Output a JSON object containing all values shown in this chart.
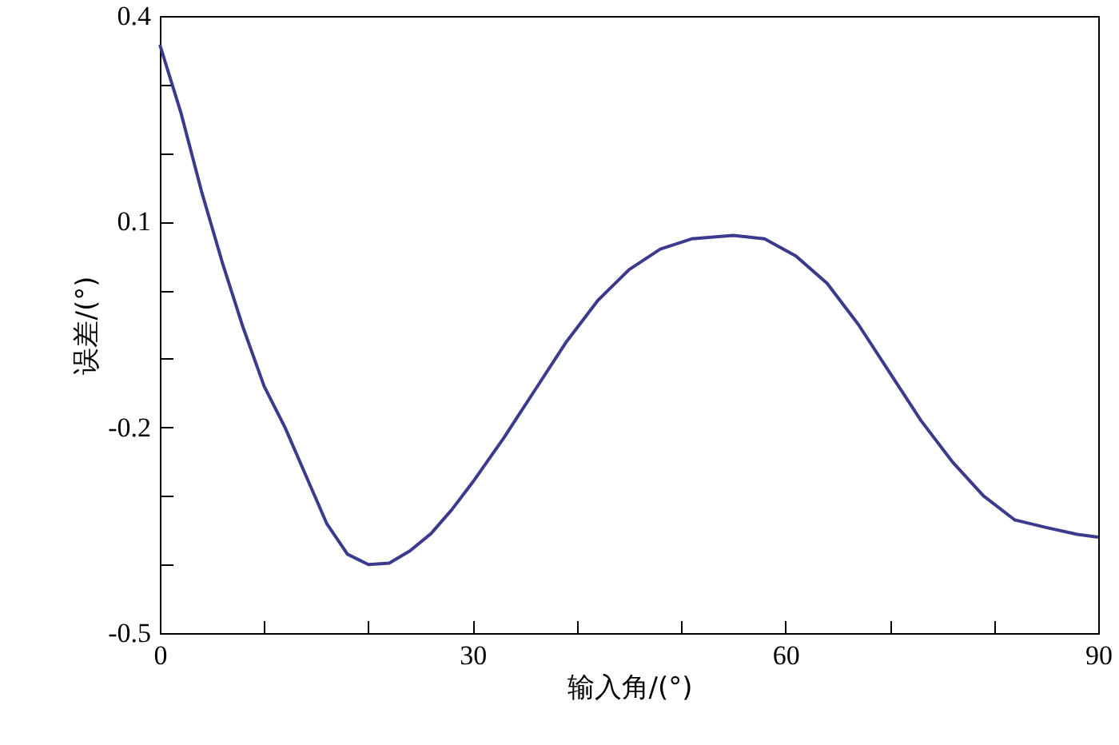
{
  "chart_data": {
    "type": "line",
    "xlabel": "输入角/(°)",
    "ylabel": "误差/(°)",
    "x": [
      0,
      2,
      4,
      6,
      8,
      10,
      12,
      14,
      16,
      18,
      20,
      22,
      24,
      26,
      28,
      30,
      33,
      36,
      39,
      42,
      45,
      48,
      51,
      55,
      58,
      61,
      64,
      67,
      70,
      73,
      76,
      79,
      82,
      85,
      88,
      90
    ],
    "series": [
      {
        "color": "#3c3a8c",
        "values": [
          0.358,
          0.26,
          0.144,
          0.04,
          -0.055,
          -0.14,
          -0.2,
          -0.27,
          -0.34,
          -0.385,
          -0.4,
          -0.398,
          -0.38,
          -0.355,
          -0.32,
          -0.28,
          -0.215,
          -0.145,
          -0.075,
          -0.015,
          0.03,
          0.06,
          0.075,
          0.08,
          0.075,
          0.05,
          0.01,
          -0.05,
          -0.12,
          -0.19,
          -0.25,
          -0.3,
          -0.335,
          -0.346,
          -0.356,
          -0.36
        ]
      }
    ],
    "xlim": [
      0,
      90
    ],
    "xticks": [
      0,
      {
        "value": 10,
        "label": null
      },
      {
        "value": 20,
        "label": null
      },
      30,
      {
        "value": 40,
        "label": null
      },
      {
        "value": 50,
        "label": null
      },
      60,
      {
        "value": 70,
        "label": null
      },
      {
        "value": 80,
        "label": null
      },
      90
    ],
    "ylim": [
      -0.5,
      0.4
    ],
    "yticks": [
      -0.5,
      {
        "value": -0.4,
        "label": null
      },
      {
        "value": -0.3,
        "label": null
      },
      -0.2,
      {
        "value": -0.1,
        "label": null
      },
      {
        "value": 0,
        "label": null
      },
      0.1,
      {
        "value": 0.2,
        "label": null
      },
      {
        "value": 0.3,
        "label": null
      },
      0.4
    ],
    "grid": false,
    "marker": "none",
    "line_style": "solid"
  }
}
